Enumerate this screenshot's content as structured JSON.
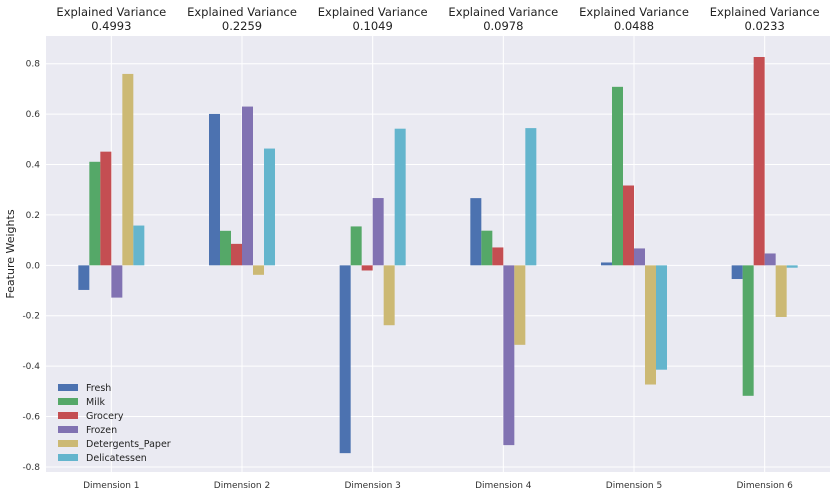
{
  "chart_data": {
    "type": "bar",
    "title": "",
    "xlabel": "",
    "ylabel": "Feature Weights",
    "ylim": [
      -0.82,
      0.91
    ],
    "yticks": [
      "-0.8",
      "-0.6",
      "-0.4",
      "-0.2",
      "0.0",
      "0.2",
      "0.4",
      "0.6",
      "0.8"
    ],
    "categories": [
      "Dimension 1",
      "Dimension 2",
      "Dimension 3",
      "Dimension 4",
      "Dimension 5",
      "Dimension 6"
    ],
    "explained_variance_label": "Explained Variance",
    "explained_variance": [
      "0.4993",
      "0.2259",
      "0.1049",
      "0.0978",
      "0.0488",
      "0.0233"
    ],
    "legend_position": "lower-left",
    "series": [
      {
        "name": "Fresh",
        "color": "#4c72b0",
        "values": [
          -0.0976,
          0.6008,
          -0.7452,
          0.2667,
          0.0114,
          -0.0543
        ]
      },
      {
        "name": "Milk",
        "color": "#55a868",
        "values": [
          0.4109,
          0.137,
          0.1544,
          0.1375,
          0.7083,
          -0.5177
        ]
      },
      {
        "name": "Grocery",
        "color": "#c44e52",
        "values": [
          0.4511,
          0.0852,
          -0.0204,
          0.071,
          0.3168,
          0.8267
        ]
      },
      {
        "name": "Frozen",
        "color": "#8172b2",
        "values": [
          -0.128,
          0.63,
          0.267,
          -0.7133,
          0.0671,
          0.0471
        ]
      },
      {
        "name": "Detergents_Paper",
        "color": "#ccb974",
        "values": [
          0.7595,
          -0.0376,
          -0.2376,
          -0.3154,
          -0.4729,
          -0.2049
        ]
      },
      {
        "name": "Delicatessen",
        "color": "#64b5cd",
        "values": [
          0.1579,
          0.4634,
          0.5422,
          0.5445,
          -0.4141,
          -0.0094
        ]
      }
    ]
  }
}
